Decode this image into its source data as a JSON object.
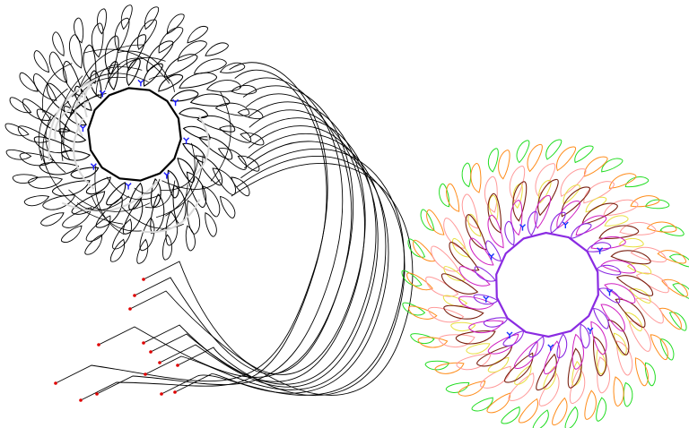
{
  "canvas": {
    "background": "#ffffff"
  },
  "figures": [
    {
      "name": "monochrome-ring",
      "stroke": "#000000",
      "highlight": "#d8d8d8",
      "marker_color": "#1a1aff",
      "layers": 4,
      "petals_per_layer": 30,
      "has_tails": true,
      "tail_count": 14,
      "tail_end_color": "#e00000"
    },
    {
      "name": "colored-ring",
      "layer_colors": [
        "#22dd22",
        "#ff8c1a",
        "#ff9a9a",
        "#e8e040",
        "#7a2010",
        "#d01ec0",
        "#8a2be2",
        "#1530ff"
      ],
      "marker_color": "#1530ff",
      "layers": 6,
      "petals_per_layer": 28,
      "has_tails": false
    }
  ]
}
